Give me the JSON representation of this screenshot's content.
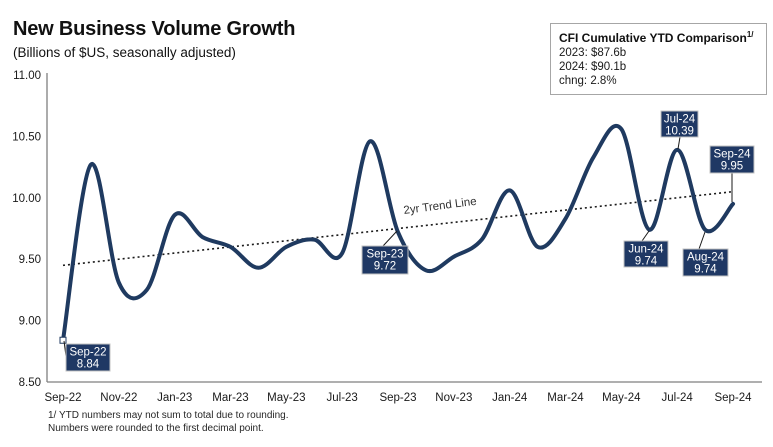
{
  "title": "New Business Volume Growth",
  "subtitle": "(Billions of $US, seasonally adjusted)",
  "stat_box": {
    "title": "CFI Cumulative YTD Comparison",
    "footnote_marker": "1/",
    "rows": [
      "2023: $87.6b",
      "2024: $90.1b",
      "chng: 2.8%"
    ]
  },
  "footnotes": [
    "1/ YTD numbers may not sum to total due to rounding.",
    "Numbers were rounded to the first decimal point."
  ],
  "chart_data": {
    "type": "line",
    "title": "New Business Volume Growth",
    "ylabel": "Billions of $US, seasonally adjusted",
    "x": [
      "Sep-22",
      "Oct-22",
      "Nov-22",
      "Dec-22",
      "Jan-23",
      "Feb-23",
      "Mar-23",
      "Apr-23",
      "May-23",
      "Jun-23",
      "Jul-23",
      "Aug-23",
      "Sep-23",
      "Oct-23",
      "Nov-23",
      "Dec-23",
      "Jan-24",
      "Feb-24",
      "Mar-24",
      "Apr-24",
      "May-24",
      "Jun-24",
      "Jul-24",
      "Aug-24",
      "Sep-24"
    ],
    "values": [
      8.84,
      10.27,
      9.31,
      9.25,
      9.86,
      9.68,
      9.6,
      9.43,
      9.6,
      9.66,
      9.55,
      10.46,
      9.72,
      9.41,
      9.52,
      9.66,
      10.06,
      9.6,
      9.83,
      10.33,
      10.56,
      9.74,
      10.39,
      9.74,
      9.95
    ],
    "x_tick_labels": [
      "Sep-22",
      "Nov-22",
      "Jan-23",
      "Mar-23",
      "May-23",
      "Jul-23",
      "Sep-23",
      "Nov-23",
      "Jan-24",
      "Mar-24",
      "May-24",
      "Jul-24",
      "Sep-24"
    ],
    "y_tick_labels": [
      "8.50",
      "9.00",
      "9.50",
      "10.00",
      "10.50",
      "11.00"
    ],
    "y_ticks": [
      8.5,
      9.0,
      9.5,
      10.0,
      10.5,
      11.0
    ],
    "ylim": [
      8.5,
      11.0
    ],
    "grid": false,
    "trend_line": {
      "label": "2yr Trend Line",
      "start_value": 9.45,
      "end_value": 10.05
    },
    "callouts": [
      {
        "month": "Sep-22",
        "value_label": "8.84"
      },
      {
        "month": "Sep-23",
        "value_label": "9.72"
      },
      {
        "month": "Jun-24",
        "value_label": "9.74"
      },
      {
        "month": "Jul-24",
        "value_label": "10.39"
      },
      {
        "month": "Aug-24",
        "value_label": "9.74"
      },
      {
        "month": "Sep-24",
        "value_label": "9.95"
      }
    ],
    "line_color": "#1f3a60",
    "label_box_color": "#1f3864",
    "label_text_color": "#ffffff",
    "axis_color": "#7f7f7f",
    "trend_color": "#1a1a1a"
  }
}
